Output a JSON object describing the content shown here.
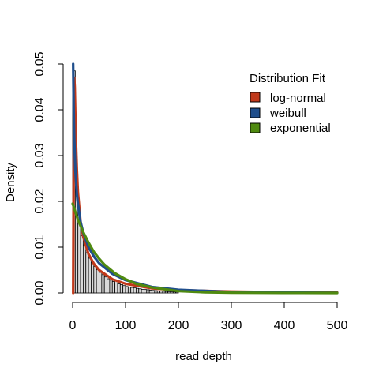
{
  "chart_data": {
    "type": "histogram",
    "xlabel": "read depth",
    "ylabel": "Density",
    "xlim": [
      0,
      500
    ],
    "ylim": [
      0,
      0.05
    ],
    "x_ticks": [
      "0",
      "100",
      "200",
      "300",
      "400",
      "500"
    ],
    "y_ticks": [
      "0.00",
      "0.01",
      "0.02",
      "0.03",
      "0.04",
      "0.05"
    ],
    "grid": false,
    "legend": {
      "title": "Distribution Fit",
      "position": "top-right",
      "entries": [
        {
          "label": "log-normal",
          "color": "#c0391b"
        },
        {
          "label": "weibull",
          "color": "#1f4e8c"
        },
        {
          "label": "exponential",
          "color": "#4f8a10"
        }
      ]
    },
    "histogram": {
      "bin_width": 5,
      "bins_start": [
        0,
        5,
        10,
        15,
        20,
        25,
        30,
        35,
        40,
        45,
        50,
        55,
        60,
        65,
        70,
        75,
        80,
        85,
        90,
        95,
        100,
        105,
        110,
        115,
        120,
        125,
        130,
        135,
        140,
        145,
        150,
        155,
        160,
        165,
        170,
        175,
        180,
        185,
        190,
        195
      ],
      "density": [
        0.0485,
        0.0245,
        0.0155,
        0.0125,
        0.0105,
        0.0088,
        0.0076,
        0.0066,
        0.0058,
        0.0051,
        0.0045,
        0.004,
        0.0035,
        0.0031,
        0.0028,
        0.0025,
        0.0022,
        0.002,
        0.0018,
        0.0016,
        0.0014,
        0.0013,
        0.0012,
        0.0011,
        0.001,
        0.0009,
        0.0008,
        0.00075,
        0.0007,
        0.00062,
        0.00055,
        0.0005,
        0.00045,
        0.0004,
        0.00036,
        0.00032,
        0.00029,
        0.00026,
        0.00023,
        0.0002
      ]
    },
    "series": [
      {
        "name": "log-normal",
        "color": "#c0391b",
        "x": [
          1,
          2,
          3,
          4,
          6,
          8,
          10,
          15,
          20,
          30,
          40,
          50,
          75,
          100,
          150,
          200,
          300,
          400,
          500
        ],
        "y": [
          0.0,
          0.03,
          0.047,
          0.045,
          0.034,
          0.027,
          0.022,
          0.0155,
          0.0123,
          0.0085,
          0.0064,
          0.005,
          0.003,
          0.002,
          0.001,
          0.0006,
          0.0003,
          0.00015,
          0.0001
        ]
      },
      {
        "name": "weibull",
        "color": "#1f4e8c",
        "x": [
          1,
          2,
          3,
          5,
          8,
          10,
          15,
          20,
          30,
          40,
          50,
          75,
          100,
          150,
          200,
          300,
          400,
          500
        ],
        "y": [
          0.05,
          0.04,
          0.034,
          0.027,
          0.0215,
          0.0195,
          0.0155,
          0.0132,
          0.01,
          0.008,
          0.0065,
          0.0042,
          0.0028,
          0.0013,
          0.0007,
          0.0002,
          8e-05,
          3e-05
        ]
      },
      {
        "name": "exponential",
        "color": "#4f8a10",
        "x": [
          0,
          10,
          20,
          30,
          40,
          50,
          60,
          80,
          100,
          120,
          150,
          200,
          250,
          300,
          400,
          500
        ],
        "y": [
          0.0195,
          0.016,
          0.0133,
          0.011,
          0.009,
          0.0075,
          0.0062,
          0.0043,
          0.003,
          0.002,
          0.0012,
          0.0004,
          0.00015,
          5e-05,
          1e-05,
          0.0
        ]
      }
    ]
  }
}
